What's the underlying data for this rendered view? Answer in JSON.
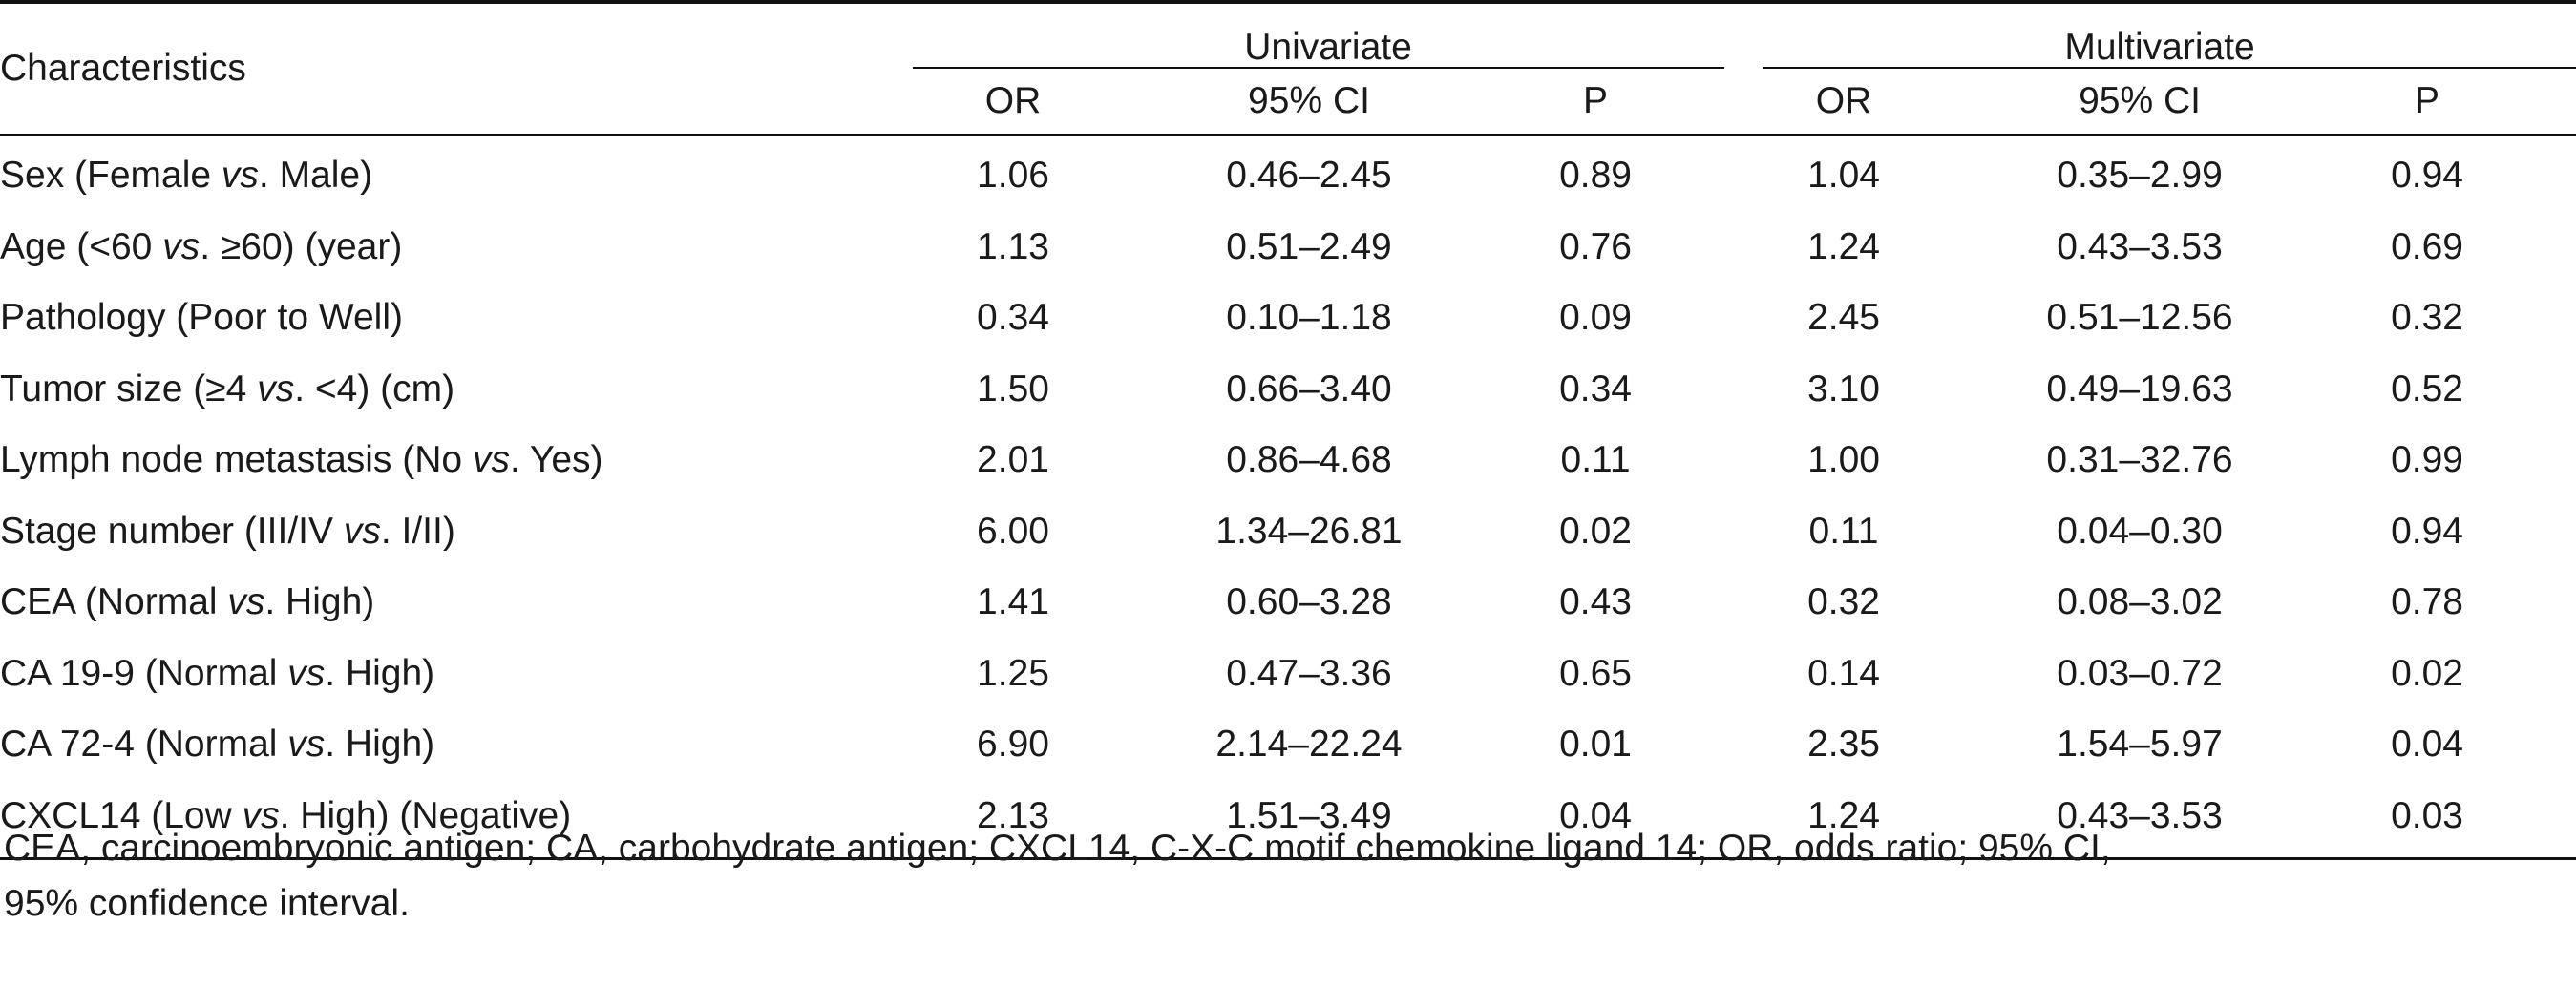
{
  "table": {
    "header": {
      "characteristics": "Characteristics",
      "univariate": "Univariate",
      "multivariate": "Multivariate",
      "uni_or": "OR",
      "uni_ci": "95% CI",
      "uni_p": "P",
      "multi_or": "OR",
      "multi_ci": "95% CI",
      "multi_p": "P"
    },
    "rows": [
      {
        "pre": "Sex (Female ",
        "vs": "vs",
        "post": ". Male)",
        "u_or": "1.06",
        "u_ci": "0.46–2.45",
        "u_p": "0.89",
        "m_or": "1.04",
        "m_ci": "0.35–2.99",
        "m_p": "0.94"
      },
      {
        "pre": "Age (<60 ",
        "vs": "vs",
        "post": ". ≥60) (year)",
        "u_or": "1.13",
        "u_ci": "0.51–2.49",
        "u_p": "0.76",
        "m_or": "1.24",
        "m_ci": "0.43–3.53",
        "m_p": "0.69"
      },
      {
        "pre": "Pathology (Poor to Well)",
        "vs": "",
        "post": "",
        "u_or": "0.34",
        "u_ci": "0.10–1.18",
        "u_p": "0.09",
        "m_or": "2.45",
        "m_ci": "0.51–12.56",
        "m_p": "0.32"
      },
      {
        "pre": "Tumor size (≥4 ",
        "vs": "vs",
        "post": ". <4) (cm)",
        "u_or": "1.50",
        "u_ci": "0.66–3.40",
        "u_p": "0.34",
        "m_or": "3.10",
        "m_ci": "0.49–19.63",
        "m_p": "0.52"
      },
      {
        "pre": "Lymph node metastasis (No ",
        "vs": "vs",
        "post": ". Yes)",
        "u_or": "2.01",
        "u_ci": "0.86–4.68",
        "u_p": "0.11",
        "m_or": "1.00",
        "m_ci": "0.31–32.76",
        "m_p": "0.99"
      },
      {
        "pre": "Stage number (III/IV ",
        "vs": "vs",
        "post": ". I/II)",
        "u_or": "6.00",
        "u_ci": "1.34–26.81",
        "u_p": "0.02",
        "m_or": "0.11",
        "m_ci": "0.04–0.30",
        "m_p": "0.94"
      },
      {
        "pre": "CEA (Normal ",
        "vs": "vs",
        "post": ". High)",
        "u_or": "1.41",
        "u_ci": "0.60–3.28",
        "u_p": "0.43",
        "m_or": "0.32",
        "m_ci": "0.08–3.02",
        "m_p": "0.78"
      },
      {
        "pre": "CA 19-9 (Normal ",
        "vs": "vs",
        "post": ". High)",
        "u_or": "1.25",
        "u_ci": "0.47–3.36",
        "u_p": "0.65",
        "m_or": "0.14",
        "m_ci": "0.03–0.72",
        "m_p": "0.02"
      },
      {
        "pre": "CA 72-4 (Normal ",
        "vs": "vs",
        "post": ". High)",
        "u_or": "6.90",
        "u_ci": "2.14–22.24",
        "u_p": "0.01",
        "m_or": "2.35",
        "m_ci": "1.54–5.97",
        "m_p": "0.04"
      },
      {
        "pre": "CXCL14 (Low ",
        "vs": "vs",
        "post": ". High) (Negative)",
        "u_or": "2.13",
        "u_ci": "1.51–3.49",
        "u_p": "0.04",
        "m_or": "1.24",
        "m_ci": "0.43–3.53",
        "m_p": "0.03"
      }
    ]
  },
  "footnote": {
    "line1": "CEA, carcinoembryonic antigen; CA, carbohydrate antigen; CXCL14, C-X-C motif chemokine ligand 14; OR, odds ratio; 95% CI,",
    "line2": "95% confidence interval."
  }
}
